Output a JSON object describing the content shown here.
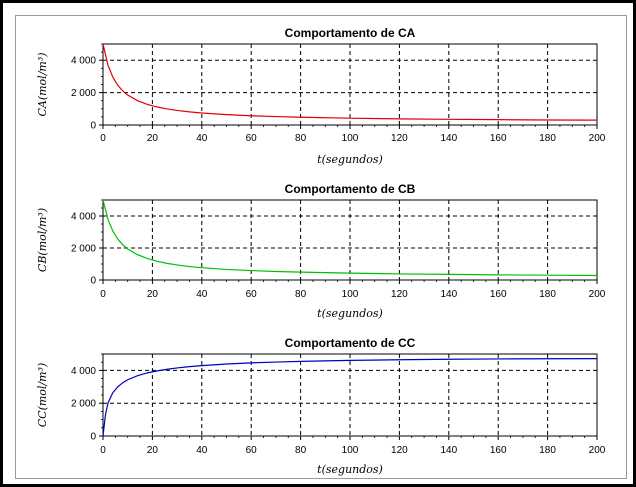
{
  "chart_data": [
    {
      "type": "line",
      "title": "Comportamento de CA",
      "xlabel": "t(segundos)",
      "ylabel": "CA(mol/m³)",
      "xlim": [
        0,
        200
      ],
      "ylim": [
        0,
        5000
      ],
      "xticks": [
        0,
        20,
        40,
        60,
        80,
        100,
        120,
        140,
        160,
        180,
        200
      ],
      "yticks": [
        0,
        2000,
        4000
      ],
      "ytick_labels": [
        "0",
        "2 000",
        "4 000"
      ],
      "grid": true,
      "color": "#e00000",
      "series": [
        {
          "x": [
            0,
            2,
            4,
            6,
            8,
            10,
            14,
            18,
            22,
            26,
            30,
            35,
            40,
            50,
            60,
            70,
            80,
            100,
            120,
            140,
            160,
            180,
            200
          ],
          "y": [
            5000,
            3700,
            2950,
            2450,
            2100,
            1850,
            1500,
            1270,
            1110,
            990,
            900,
            810,
            740,
            640,
            570,
            520,
            480,
            420,
            380,
            350,
            330,
            310,
            300
          ]
        }
      ]
    },
    {
      "type": "line",
      "title": "Comportamento de CB",
      "xlabel": "t(segundos)",
      "ylabel": "CB(mol/m³)",
      "xlim": [
        0,
        200
      ],
      "ylim": [
        0,
        5000
      ],
      "xticks": [
        0,
        20,
        40,
        60,
        80,
        100,
        120,
        140,
        160,
        180,
        200
      ],
      "yticks": [
        0,
        2000,
        4000
      ],
      "ytick_labels": [
        "0",
        "2 000",
        "4 000"
      ],
      "grid": true,
      "color": "#00c000",
      "series": [
        {
          "x": [
            0,
            2,
            4,
            6,
            8,
            10,
            14,
            18,
            22,
            26,
            30,
            35,
            40,
            50,
            60,
            70,
            80,
            100,
            120,
            140,
            160,
            180,
            200
          ],
          "y": [
            5000,
            3800,
            3050,
            2550,
            2200,
            1940,
            1580,
            1340,
            1170,
            1040,
            940,
            840,
            770,
            660,
            590,
            530,
            490,
            430,
            380,
            350,
            320,
            300,
            280
          ]
        }
      ]
    },
    {
      "type": "line",
      "title": "Comportamento de CC",
      "xlabel": "t(segundos)",
      "ylabel": "CC(mol/m³)",
      "xlim": [
        0,
        200
      ],
      "ylim": [
        0,
        5000
      ],
      "xticks": [
        0,
        20,
        40,
        60,
        80,
        100,
        120,
        140,
        160,
        180,
        200
      ],
      "yticks": [
        0,
        2000,
        4000
      ],
      "ytick_labels": [
        "0",
        "2 000",
        "4 000"
      ],
      "grid": true,
      "color": "#0000c0",
      "series": [
        {
          "x": [
            0,
            1,
            2,
            4,
            6,
            8,
            10,
            14,
            18,
            22,
            26,
            30,
            35,
            40,
            50,
            60,
            70,
            80,
            100,
            120,
            140,
            160,
            180,
            200
          ],
          "y": [
            0,
            1300,
            2000,
            2650,
            3000,
            3250,
            3430,
            3680,
            3850,
            3970,
            4070,
            4150,
            4230,
            4290,
            4390,
            4460,
            4510,
            4550,
            4610,
            4650,
            4680,
            4700,
            4710,
            4720
          ]
        }
      ]
    }
  ]
}
